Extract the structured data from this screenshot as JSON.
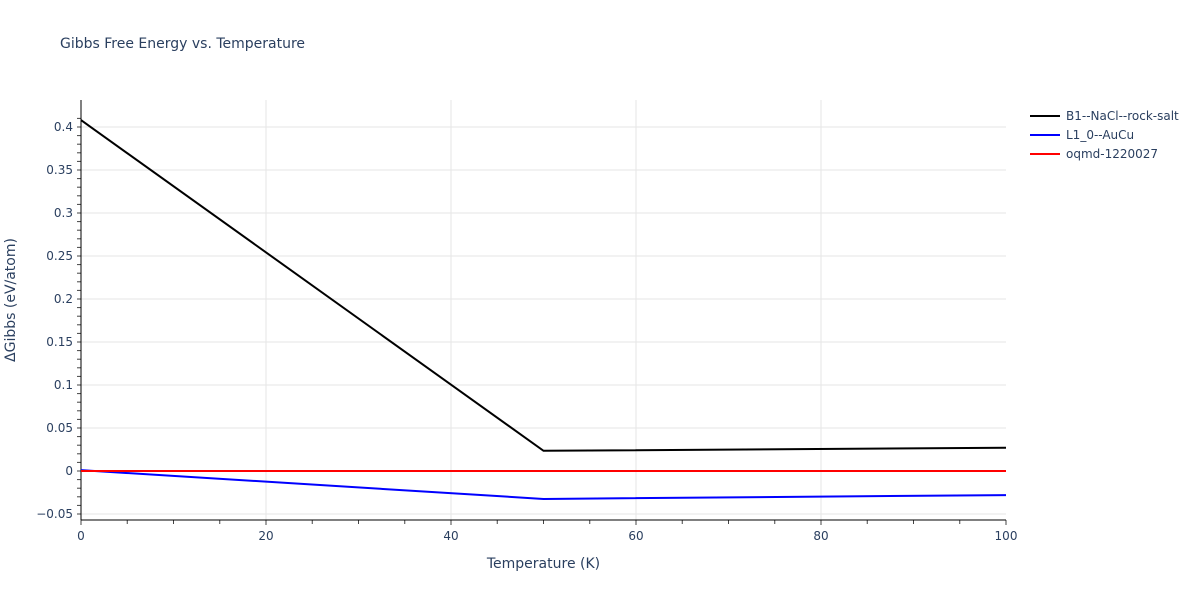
{
  "title": "Gibbs Free Energy vs. Temperature",
  "xaxis": {
    "title": "Temperature (K)",
    "ticks": [
      "0",
      "20",
      "40",
      "60",
      "80",
      "100"
    ]
  },
  "yaxis": {
    "title": "ΔGibbs (eV/atom)",
    "ticks": [
      "−0.05",
      "0",
      "0.05",
      "0.1",
      "0.15",
      "0.2",
      "0.25",
      "0.3",
      "0.35",
      "0.4"
    ]
  },
  "legend": [
    {
      "name": "B1--NaCl--rock-salt",
      "color": "#000000"
    },
    {
      "name": "L1_0--AuCu",
      "color": "#0000ff"
    },
    {
      "name": "oqmd-1220027",
      "color": "#ff0000"
    }
  ],
  "chart_data": {
    "type": "line",
    "title": "Gibbs Free Energy vs. Temperature",
    "xlabel": "Temperature (K)",
    "ylabel": "ΔGibbs (eV/atom)",
    "xlim": [
      0,
      100
    ],
    "ylim": [
      -0.055,
      0.43
    ],
    "grid": true,
    "legend_position": "right",
    "series": [
      {
        "name": "B1--NaCl--rock-salt",
        "color": "#000000",
        "x": [
          0,
          50,
          100
        ],
        "y": [
          0.408,
          0.0235,
          0.027
        ]
      },
      {
        "name": "L1_0--AuCu",
        "color": "#0000ff",
        "x": [
          0,
          50,
          100
        ],
        "y": [
          0.001,
          -0.0325,
          -0.028
        ]
      },
      {
        "name": "oqmd-1220027",
        "color": "#ff0000",
        "x": [
          0,
          50,
          100
        ],
        "y": [
          0,
          0,
          0
        ]
      }
    ]
  }
}
